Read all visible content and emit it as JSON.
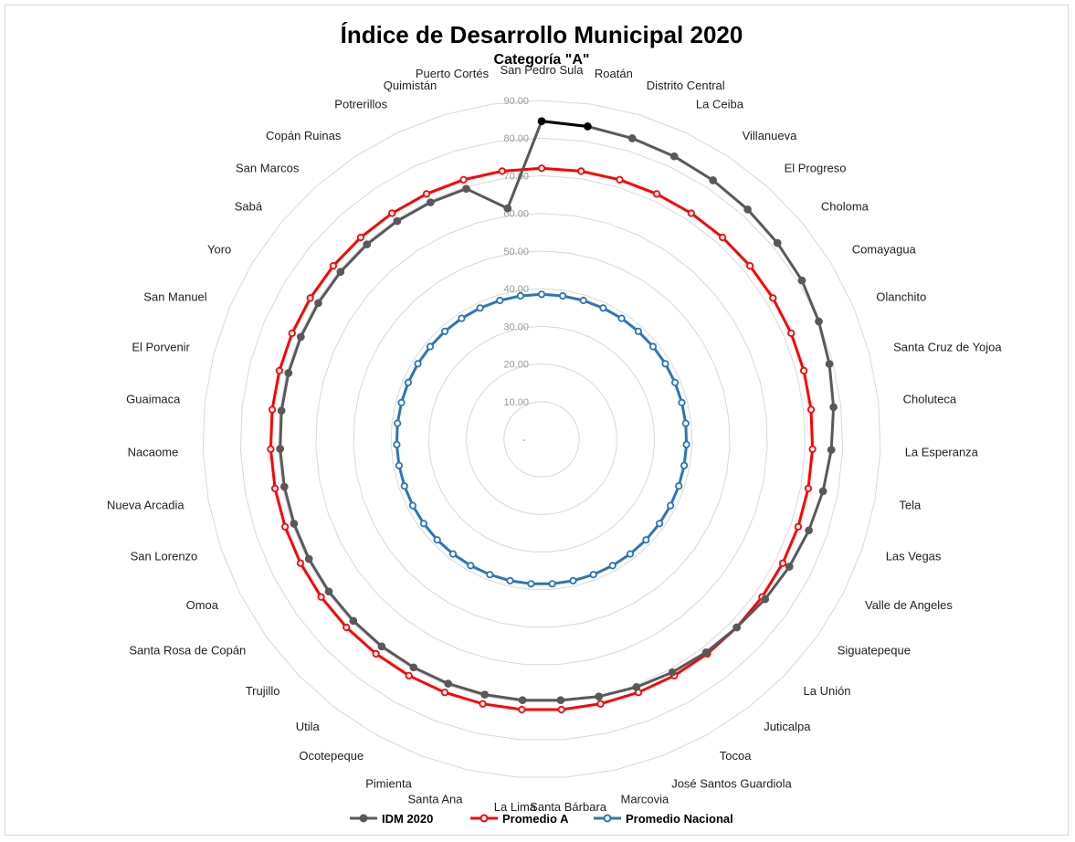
{
  "chart_data": {
    "type": "radar",
    "title": "Índice de Desarrollo  Municipal  2020",
    "subtitle": "Categoría \"A\"",
    "categories": [
      "San Pedro Sula",
      "Roatán",
      "Distrito Central",
      "La Ceiba",
      "Villanueva",
      "El Progreso",
      "Choloma",
      "Comayagua",
      "Olanchito",
      "Santa Cruz de Yojoa",
      "Choluteca",
      "La Esperanza",
      "Tela",
      "Las Vegas",
      "Valle de Angeles",
      "Siguatepeque",
      "La Unión",
      "Juticalpa",
      "Tocoa",
      "José Santos Guardiola",
      "Marcovia",
      "Santa Bárbara",
      "La Lima",
      "Santa Ana",
      "Pimienta",
      "Ocotepeque",
      "Utila",
      "Trujillo",
      "Santa Rosa de Copán",
      "Omoa",
      "San Lorenzo",
      "Nueva Arcadia",
      "Nacaome",
      "Guaimaca",
      "El Porvenir",
      "San Manuel",
      "Yoro",
      "Sabá",
      "San Marcos",
      "Copán Ruinas",
      "Potrerillos",
      "Quimistán",
      "Puerto Cortés"
    ],
    "ticks": [
      "10.00",
      "20.00",
      "30.00",
      "40.00",
      "50.00",
      "60.00",
      "70.00",
      "80.00",
      "90.00"
    ],
    "rmin": 0,
    "rmax": 90,
    "series": [
      {
        "name": "IDM 2020",
        "color": "#595959",
        "values": [
          84.5,
          84,
          83.5,
          83,
          82.5,
          82,
          81.5,
          81,
          80,
          79,
          78,
          77,
          76,
          75,
          74,
          73,
          72,
          71.5,
          71,
          70.5,
          70,
          69.5,
          69.5,
          69.5,
          69.5,
          69.5,
          69.5,
          69.5,
          69.5,
          69.5,
          69.5,
          69.5,
          69.5,
          69.5,
          69.5,
          69.5,
          69.5,
          69.5,
          69.5,
          69.5,
          69.5,
          69.5,
          62
        ]
      },
      {
        "name": "Promedio A",
        "color": "#ff0000",
        "values": [
          72,
          72,
          72,
          72,
          72,
          72,
          72,
          72,
          72,
          72,
          72,
          72,
          72,
          72,
          72,
          72,
          72,
          72,
          72,
          72,
          72,
          72,
          72,
          72,
          72,
          72,
          72,
          72,
          72,
          72,
          72,
          72,
          72,
          72,
          72,
          72,
          72,
          72,
          72,
          72,
          72,
          72,
          72
        ]
      },
      {
        "name": "Promedio Nacional",
        "color": "#2e75b6",
        "values": [
          38.5,
          38.5,
          38.5,
          38.5,
          38.5,
          38.5,
          38.5,
          38.5,
          38.5,
          38.5,
          38.5,
          38.5,
          38.5,
          38.5,
          38.5,
          38.5,
          38.5,
          38.5,
          38.5,
          38.5,
          38.5,
          38.5,
          38.5,
          38.5,
          38.5,
          38.5,
          38.5,
          38.5,
          38.5,
          38.5,
          38.5,
          38.5,
          38.5,
          38.5,
          38.5,
          38.5,
          38.5,
          38.5,
          38.5,
          38.5,
          38.5,
          38.5,
          38.5
        ]
      }
    ],
    "legend_position": "bottom",
    "grid": true,
    "highlight_segment_color": "#000000"
  }
}
